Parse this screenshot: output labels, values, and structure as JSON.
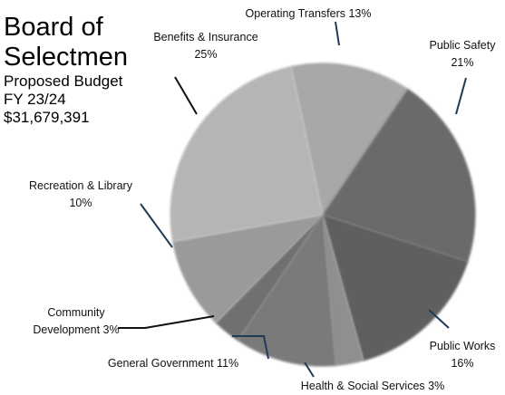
{
  "title_lines": [
    "Board of",
    "Selectmen"
  ],
  "subtitle_lines": [
    "Proposed Budget",
    "FY 23/24",
    "$31,679,391"
  ],
  "colors": {
    "leader": "#1f3b57",
    "leader_dark": "#111111"
  },
  "chart_data": {
    "type": "pie",
    "title": "Board of Selectmen",
    "subtitle": "Proposed Budget FY 23/24 $31,679,391",
    "legend": "none",
    "slices": [
      {
        "id": "operating",
        "value": 13,
        "color": "#a8a8a8",
        "label_lines": [
          "Operating Transfers 13%"
        ]
      },
      {
        "id": "public-safety",
        "value": 21,
        "color": "#6b6b6b",
        "label_lines": [
          "Public Safety",
          "21%"
        ]
      },
      {
        "id": "public-works",
        "value": 16,
        "color": "#5e5e5e",
        "label_lines": [
          "Public Works",
          "16%"
        ]
      },
      {
        "id": "health",
        "value": 3,
        "color": "#8f8f8f",
        "label_lines": [
          "Health & Social Services 3%"
        ]
      },
      {
        "id": "general-gov",
        "value": 11,
        "color": "#7a7a7a",
        "label_lines": [
          "General Government 11%"
        ]
      },
      {
        "id": "community-dev",
        "value": 3,
        "color": "#707070",
        "label_lines": [
          "Community",
          "Development 3%"
        ]
      },
      {
        "id": "recreation",
        "value": 10,
        "color": "#9a9a9a",
        "label_lines": [
          "Recreation & Library",
          "10%"
        ]
      },
      {
        "id": "benefits",
        "value": 25,
        "color": "#b5b5b5",
        "label_lines": [
          "Benefits & Insurance",
          "25%"
        ]
      }
    ]
  }
}
